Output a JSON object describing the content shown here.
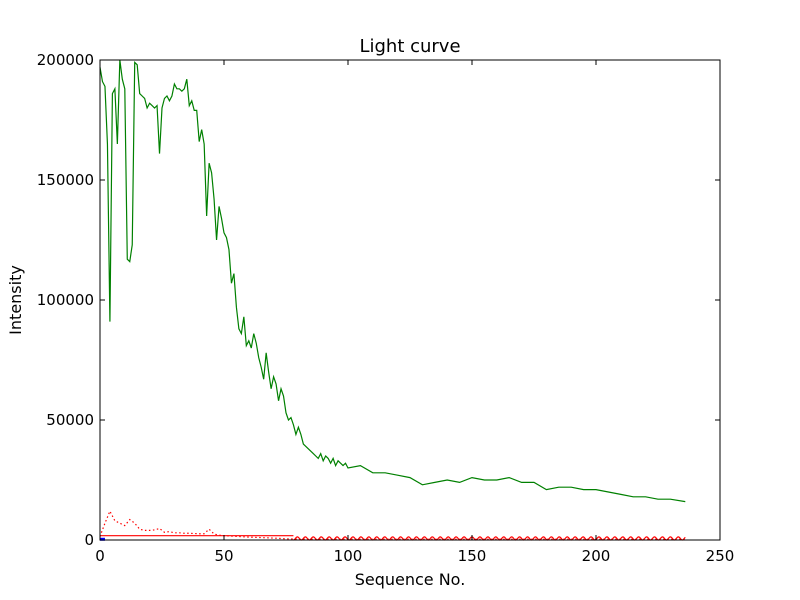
{
  "chart_data": {
    "type": "line",
    "title": "Light curve",
    "xlabel": "Sequence No.",
    "ylabel": "Intensity",
    "xlim": [
      0,
      250
    ],
    "ylim": [
      0,
      200000
    ],
    "xticks": [
      0,
      50,
      100,
      150,
      200,
      250
    ],
    "yticks": [
      0,
      50000,
      100000,
      150000,
      200000
    ],
    "grid": false,
    "legend": "none",
    "series": [
      {
        "style": "solid",
        "color": "#008000",
        "x": [
          0,
          1,
          2,
          3,
          4,
          5,
          6,
          7,
          8,
          9,
          10,
          11,
          12,
          13,
          14,
          15,
          16,
          17,
          18,
          19,
          20,
          21,
          22,
          23,
          24,
          25,
          26,
          27,
          28,
          29,
          30,
          31,
          32,
          33,
          34,
          35,
          36,
          37,
          38,
          39,
          40,
          41,
          42,
          43,
          44,
          45,
          46,
          47,
          48,
          49,
          50,
          51,
          52,
          53,
          54,
          55,
          56,
          57,
          58,
          59,
          60,
          61,
          62,
          63,
          64,
          65,
          66,
          67,
          68,
          69,
          70,
          71,
          72,
          73,
          74,
          75,
          76,
          77,
          78,
          79,
          80,
          81,
          82,
          83,
          84,
          85,
          86,
          87,
          88,
          89,
          90,
          91,
          92,
          93,
          94,
          95,
          96,
          97,
          98,
          99,
          100,
          105,
          110,
          115,
          120,
          125,
          130,
          135,
          140,
          145,
          150,
          155,
          160,
          165,
          170,
          175,
          180,
          185,
          190,
          195,
          200,
          205,
          210,
          215,
          220,
          225,
          230,
          236
        ],
        "y": [
          197000,
          191000,
          189000,
          165000,
          91000,
          186000,
          188000,
          165000,
          200000,
          192000,
          188000,
          117000,
          116000,
          123000,
          199000,
          198000,
          186000,
          185000,
          184000,
          180000,
          182000,
          181000,
          180000,
          181000,
          161000,
          180000,
          184000,
          185000,
          183000,
          185000,
          190000,
          188000,
          188000,
          187000,
          188000,
          192000,
          181000,
          183000,
          179000,
          179000,
          166000,
          171000,
          165000,
          135000,
          157000,
          153000,
          142000,
          125000,
          139000,
          134000,
          128000,
          126000,
          121000,
          107000,
          111000,
          97000,
          88000,
          86000,
          93000,
          81000,
          83000,
          80000,
          86000,
          82000,
          76000,
          72000,
          67000,
          78000,
          70000,
          63000,
          68000,
          65000,
          58000,
          63000,
          60000,
          53000,
          50000,
          51000,
          48000,
          44000,
          47000,
          44000,
          40000,
          39000,
          38000,
          37000,
          36000,
          35000,
          34000,
          36000,
          33000,
          35000,
          34000,
          32000,
          34000,
          31000,
          33000,
          32000,
          31000,
          32000,
          30000,
          31000,
          28000,
          28000,
          27000,
          26000,
          23000,
          24000,
          25000,
          24000,
          26000,
          25000,
          25000,
          26000,
          24000,
          24000,
          21000,
          22000,
          22000,
          21000,
          21000,
          20000,
          19000,
          18000,
          18000,
          17000,
          17000,
          16000
        ]
      },
      {
        "style": "dotted",
        "color": "#ff0000",
        "x": [
          0,
          2,
          4,
          6,
          8,
          10,
          12,
          14,
          16,
          18,
          20,
          22,
          24,
          26,
          28,
          30,
          32,
          34,
          36,
          38,
          40,
          42,
          44,
          46,
          48,
          50,
          55,
          60,
          65,
          70,
          75,
          80,
          90,
          100,
          120,
          140,
          160,
          180,
          200,
          220,
          236
        ],
        "y": [
          1500,
          7000,
          12000,
          8000,
          7000,
          6000,
          8500,
          7000,
          4500,
          4000,
          4000,
          4200,
          4800,
          3200,
          3500,
          3000,
          3000,
          2800,
          2800,
          2700,
          2600,
          2600,
          4500,
          2500,
          2000,
          1800,
          1500,
          1200,
          1000,
          800,
          500,
          400,
          300,
          300,
          300,
          300,
          300,
          300,
          300,
          300,
          300
        ]
      },
      {
        "style": "solid",
        "color": "#ff0000",
        "x": [
          0,
          10,
          20,
          30,
          40,
          50,
          60,
          70,
          78
        ],
        "y": [
          1800,
          1800,
          1800,
          1800,
          1800,
          1800,
          1800,
          1800,
          1800
        ]
      },
      {
        "style": "oscillating",
        "color": "#ff0000",
        "xstart": 78,
        "xend": 236,
        "amplitude": 1300,
        "period": 3.2
      },
      {
        "style": "solid",
        "color": "#0000ff",
        "x": [
          0,
          2
        ],
        "y": [
          300,
          300
        ]
      }
    ]
  }
}
